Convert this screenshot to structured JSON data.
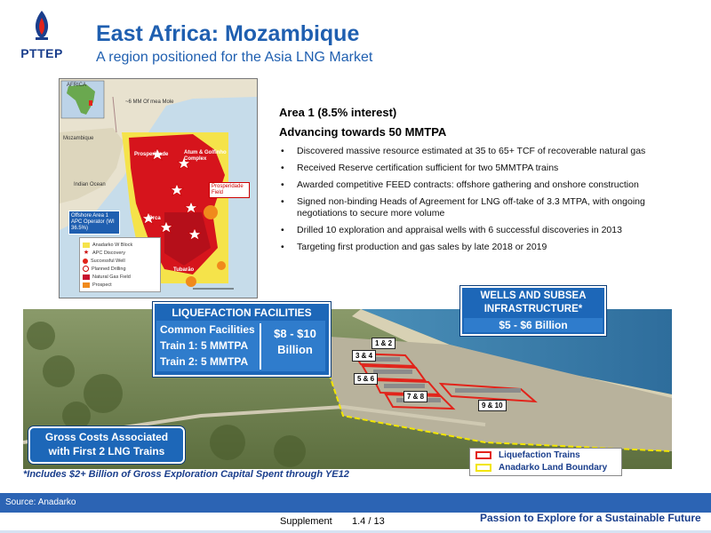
{
  "header": {
    "logo_text": "PTTEP",
    "title": "East Africa: Mozambique",
    "subtitle": "A region positioned for the Asia LNG Market"
  },
  "map": {
    "labels": {
      "africa": "AFRICA",
      "offshore_capacity": "~6 MM Of mea Mole",
      "mozambique": "Mozambique",
      "indian_ocean": "Indian Ocean",
      "prosperidade": "Prosperidade",
      "golfinho": "Atum & Golfinho Complex",
      "prosperidade_field": "Prosperidade Field",
      "orca": "Orca",
      "tubarao": "Tubarão"
    },
    "apc_box": "Offshore Area 1 APC Operator (WI 36.5%)",
    "legend": [
      {
        "label": "Anadarko W Block",
        "color": "#f5e34a"
      },
      {
        "label": "APC Discovery",
        "color": "#ffffff"
      },
      {
        "label": "Successful Well",
        "color": "#e2231a"
      },
      {
        "label": "Planned Drilling",
        "color": "#ffffff"
      },
      {
        "label": "Natural Gas Field",
        "color": "#c8102e"
      },
      {
        "label": "Prospect",
        "color": "#f08a1c"
      }
    ]
  },
  "content": {
    "heading": "Area 1 (8.5% interest)",
    "subheading": "Advancing towards 50 MMTPA",
    "bullets": [
      "Discovered massive resource estimated at 35 to 65+ TCF of recoverable natural gas",
      "Received Reserve certification sufficient for two 5MMTPA trains",
      "Awarded competitive FEED contracts: offshore gathering and onshore construction",
      "Signed non-binding Heads of Agreement for LNG off-take of 3.3 MTPA,  with ongoing negotiations to secure more volume",
      "Drilled 10 exploration and appraisal wells with 6 successful discoveries in 2013",
      "Targeting first production and gas sales by late 2018 or 2019"
    ]
  },
  "scene": {
    "liquefaction": {
      "title": "LIQUEFACTION FACILITIES",
      "line1": "Common Facilities",
      "line2": "Train 1: 5 MMTPA",
      "line3": "Train 2: 5 MMTPA",
      "cost": "$8 - $10",
      "cost_unit": "Billion"
    },
    "wells": {
      "line1": "WELLS AND SUBSEA",
      "line2": "INFRASTRUCTURE*",
      "cost": "$5 - $6 Billion"
    },
    "gross_costs": {
      "line1": "Gross Costs Associated",
      "line2": "with First 2 LNG Trains"
    },
    "train_tags": [
      "1 & 2",
      "3 & 4",
      "5 & 6",
      "7 & 8",
      "9 & 10"
    ],
    "legend": {
      "liquefaction": "Liquefaction Trains",
      "boundary": "Anadarko Land Boundary",
      "liquefaction_color": "#e2231a",
      "boundary_color": "#f2e500"
    },
    "footnote": "*Includes $2+ Billion of Gross Exploration Capital Spent through YE12"
  },
  "footer": {
    "source": "Source: Anadarko",
    "section": "Supplement",
    "page": "1.4 / 13",
    "tagline": "Passion to Explore for a Sustainable Future"
  },
  "colors": {
    "brand_blue": "#1f5fb0",
    "callout_blue": "#1d67b8",
    "footer_bar": "#2c64b4"
  }
}
